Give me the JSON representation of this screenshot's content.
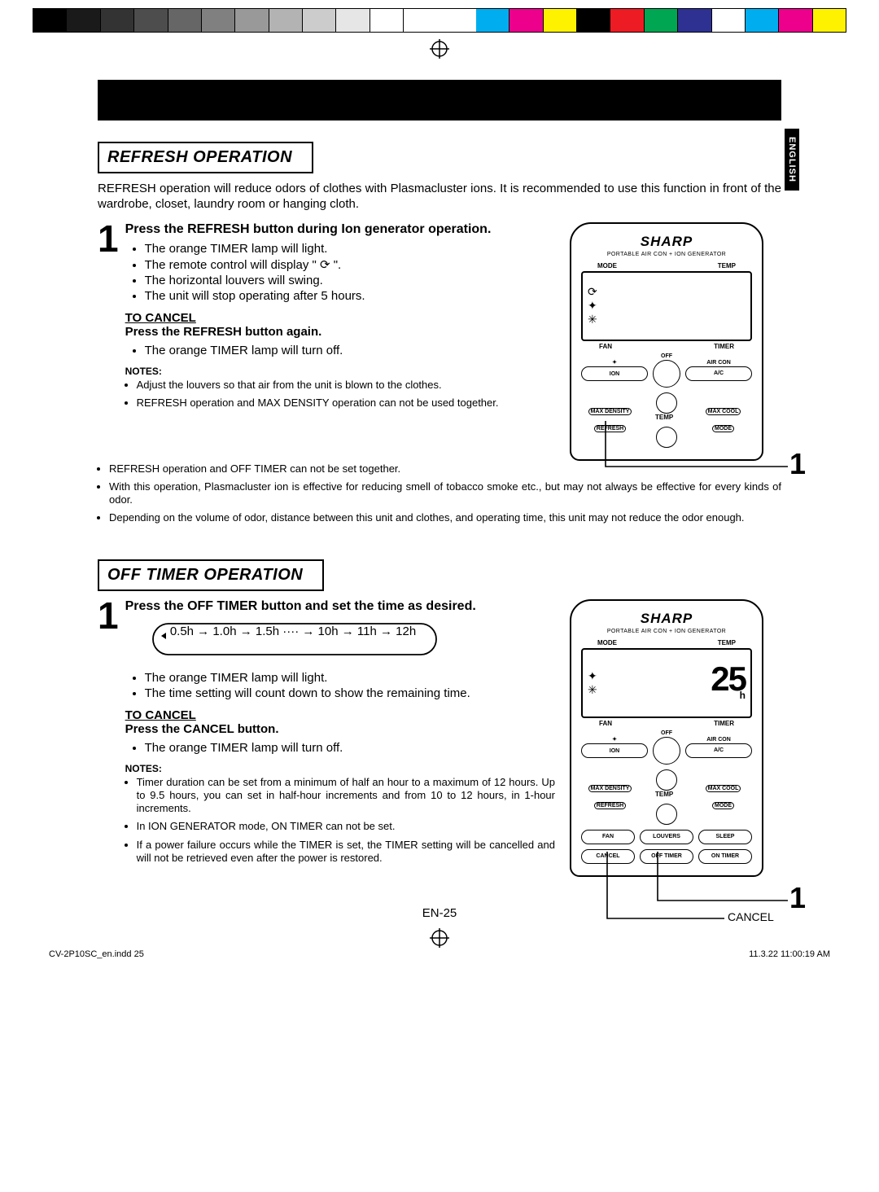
{
  "colorbar": {
    "grays": [
      "#000000",
      "#1a1a1a",
      "#333333",
      "#4d4d4d",
      "#666666",
      "#808080",
      "#999999",
      "#b3b3b3",
      "#cccccc",
      "#e6e6e6",
      "#ffffff"
    ],
    "colors": [
      "#00aeef",
      "#ec008c",
      "#fff200",
      "#000000",
      "#ed1c24",
      "#00a651",
      "#2e3192",
      "#ffffff",
      "#00aeef",
      "#ec008c",
      "#fff200"
    ]
  },
  "lang_tab": "ENGLISH",
  "sec1": {
    "title": "REFRESH OPERATION",
    "intro": "REFRESH operation will reduce odors of clothes with Plasmacluster ions. It is recommended to use this function in front of the wardrobe, closet, laundry room or hanging cloth.",
    "step_num": "1",
    "step_head": "Press the REFRESH button during Ion generator operation.",
    "bullets": [
      "The orange TIMER lamp will light.",
      "The remote control will display \"  ⟳  \".",
      "The horizontal louvers will swing.",
      "The unit will stop operating after 5 hours."
    ],
    "cancel_title": "TO CANCEL",
    "cancel_head": "Press the REFRESH button again.",
    "cancel_bul": [
      "The orange TIMER lamp will turn off."
    ],
    "notes_label": "NOTES:",
    "notes": [
      "Adjust the louvers so that air from the unit is blown to the clothes.",
      "REFRESH operation and MAX DENSITY operation can not be used together.",
      "REFRESH operation and OFF TIMER can not be set together.",
      "With this operation, Plasmacluster ion is effective for reducing smell of tobacco smoke etc., but may not always be effective for every kinds of odor.",
      "Depending on the volume of odor, distance between this unit and clothes, and operating time, this unit may not reduce the odor enough."
    ]
  },
  "remote": {
    "brand": "SHARP",
    "subbrand": "PORTABLE AIR CON + ION GENERATOR",
    "mode": "MODE",
    "temp": "TEMP",
    "fan": "FAN",
    "timer": "TIMER",
    "off": "OFF",
    "aircon": "AIR CON",
    "ion": "ION",
    "ac": "A/C",
    "maxd": "MAX DENSITY",
    "maxc": "MAX COOL",
    "refresh": "REFRESH",
    "temp_c": "TEMP",
    "mode_b": "MODE",
    "fan_b": "FAN",
    "louvers": "LOUVERS",
    "sleep": "SLEEP",
    "cancel": "CANCEL",
    "offt": "OFF TIMER",
    "ont": "ON TIMER",
    "seg": "25",
    "hr": "h",
    "callout1": "1",
    "cancel_lbl": "CANCEL"
  },
  "sec2": {
    "title": "OFF TIMER OPERATION",
    "step_num": "1",
    "step_head": "Press the OFF TIMER button and set the time as desired.",
    "loop": "0.5h → 1.0h → 1.5h ···· → 10h → 11h → 12h",
    "bullets": [
      "The orange TIMER lamp will light.",
      "The time setting will count down to show the remaining time."
    ],
    "cancel_title": "TO CANCEL",
    "cancel_head": "Press the CANCEL button.",
    "cancel_bul": [
      "The orange TIMER lamp will turn off."
    ],
    "notes_label": "NOTES:",
    "notes": [
      "Timer duration can be set from a minimum of half an hour to a maximum of 12 hours. Up to 9.5 hours, you can set in half-hour increments and from 10 to 12 hours, in 1-hour increments.",
      "In ION GENERATOR mode, ON TIMER can not be set.",
      "If a power failure occurs while the TIMER is set, the TIMER setting will be cancelled and will not be retrieved even after the power is restored."
    ]
  },
  "page_num": "EN-25",
  "foot_left": "CV-2P10SC_en.indd   25",
  "foot_right": "11.3.22   11:00:19 AM"
}
